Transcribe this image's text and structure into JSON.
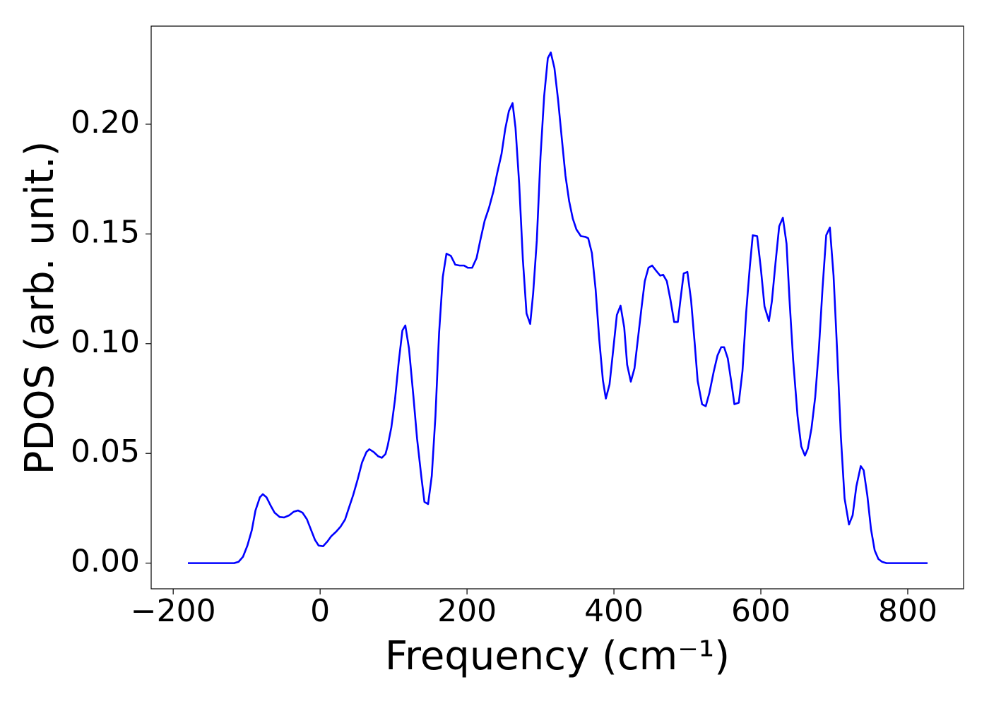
{
  "chart_data": {
    "type": "line",
    "x_label": "Frequency (cm⁻¹)",
    "y_label": "PDOS (arb. unit.)",
    "xlim": [
      -230,
      876
    ],
    "ylim": [
      -0.0117,
      0.2447
    ],
    "xticks": [
      {
        "value": -200,
        "label": "−200"
      },
      0,
      200,
      400,
      600,
      800
    ],
    "yticks": [
      {
        "value": 0,
        "label": "0.00"
      },
      {
        "value": 0.05,
        "label": "0.05"
      },
      {
        "value": 0.1,
        "label": "0.10"
      },
      {
        "value": 0.15,
        "label": "0.15"
      },
      {
        "value": 0.2,
        "label": "0.20"
      }
    ],
    "grid": false,
    "series": [
      {
        "color": "#0000ff",
        "x": [
          -180,
          -117,
          -111,
          -105,
          -99,
          -93,
          -88,
          -82,
          -78,
          -73,
          -67,
          -62,
          -55,
          -49,
          -42,
          -36,
          -30,
          -24,
          -18,
          -13,
          -7,
          -2,
          4,
          10,
          15,
          22,
          28,
          34,
          39,
          45,
          51,
          57,
          63,
          67,
          73,
          79,
          84,
          89,
          92,
          97,
          102,
          107,
          112,
          116,
          121,
          127,
          132,
          138,
          142,
          147,
          152,
          157,
          162,
          167,
          172,
          178,
          184,
          190,
          196,
          201,
          207,
          213,
          218,
          224,
          230,
          236,
          241,
          247,
          252,
          257,
          262,
          266,
          271,
          276,
          281,
          286,
          290,
          295,
          300,
          305,
          310,
          314,
          319,
          324,
          329,
          334,
          339,
          344,
          349,
          355,
          361,
          365,
          370,
          375,
          380,
          385,
          389,
          394,
          399,
          404,
          409,
          414,
          418,
          423,
          428,
          433,
          438,
          442,
          447,
          452,
          458,
          463,
          467,
          472,
          477,
          482,
          487,
          491,
          495,
          500,
          505,
          510,
          514,
          520,
          525,
          530,
          536,
          541,
          546,
          550,
          555,
          560,
          564,
          570,
          575,
          580,
          585,
          589,
          595,
          600,
          605,
          611,
          615,
          620,
          625,
          630,
          635,
          639,
          644,
          650,
          655,
          660,
          664,
          669,
          674,
          679,
          684,
          689,
          694,
          699,
          704,
          709,
          714,
          720,
          725,
          730,
          736,
          740,
          745,
          750,
          755,
          760,
          765,
          771,
          827
        ],
        "values": [
          0,
          0,
          0.0006,
          0.0029,
          0.008,
          0.015,
          0.024,
          0.03,
          0.0314,
          0.03,
          0.026,
          0.023,
          0.021,
          0.0208,
          0.0218,
          0.0234,
          0.024,
          0.023,
          0.02,
          0.0157,
          0.0106,
          0.008,
          0.0077,
          0.0099,
          0.0122,
          0.0144,
          0.0167,
          0.0199,
          0.025,
          0.031,
          0.038,
          0.0458,
          0.0506,
          0.0519,
          0.0506,
          0.0487,
          0.048,
          0.0497,
          0.0535,
          0.0619,
          0.0747,
          0.0917,
          0.106,
          0.1083,
          0.0978,
          0.076,
          0.0567,
          0.0388,
          0.0279,
          0.0269,
          0.0397,
          0.067,
          0.105,
          0.1304,
          0.141,
          0.14,
          0.136,
          0.1356,
          0.1356,
          0.1346,
          0.1346,
          0.139,
          0.147,
          0.156,
          0.162,
          0.1695,
          0.1776,
          0.1865,
          0.1978,
          0.206,
          0.2096,
          0.1984,
          0.173,
          0.1385,
          0.1138,
          0.109,
          0.1228,
          0.147,
          0.185,
          0.2128,
          0.2301,
          0.2327,
          0.2256,
          0.211,
          0.1936,
          0.1766,
          0.165,
          0.157,
          0.152,
          0.149,
          0.1487,
          0.148,
          0.1413,
          0.125,
          0.102,
          0.0833,
          0.075,
          0.0814,
          0.0971,
          0.1131,
          0.1173,
          0.1074,
          0.0904,
          0.0827,
          0.0888,
          0.1032,
          0.1176,
          0.1285,
          0.1346,
          0.1356,
          0.133,
          0.131,
          0.1314,
          0.1285,
          0.1199,
          0.1099,
          0.1099,
          0.1212,
          0.132,
          0.1327,
          0.1199,
          0.1,
          0.083,
          0.0724,
          0.0715,
          0.0776,
          0.0875,
          0.0946,
          0.0984,
          0.0984,
          0.0933,
          0.082,
          0.0724,
          0.0731,
          0.0875,
          0.1141,
          0.135,
          0.1494,
          0.149,
          0.1343,
          0.117,
          0.1103,
          0.1192,
          0.1369,
          0.1535,
          0.1574,
          0.1455,
          0.1202,
          0.0926,
          0.067,
          0.0532,
          0.049,
          0.0522,
          0.0615,
          0.0756,
          0.0974,
          0.1253,
          0.1494,
          0.1529,
          0.131,
          0.0958,
          0.0574,
          0.0295,
          0.0176,
          0.0218,
          0.0349,
          0.0442,
          0.0423,
          0.0308,
          0.0154,
          0.0058,
          0.0019,
          0.0006,
          0,
          0
        ]
      }
    ]
  }
}
